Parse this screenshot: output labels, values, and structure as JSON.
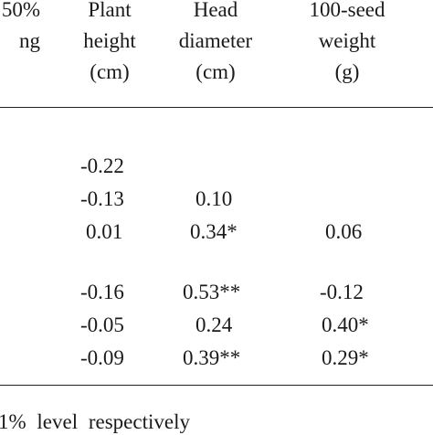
{
  "table": {
    "headers": [
      {
        "lines": [
          "50%",
          "ng"
        ]
      },
      {
        "lines": [
          "Plant",
          "height",
          "(cm)"
        ]
      },
      {
        "lines": [
          "Head",
          "diameter",
          "(cm)"
        ]
      },
      {
        "lines": [
          "100-seed",
          "weight",
          "(g)"
        ]
      }
    ],
    "rows": [
      {
        "height": "-0.22",
        "head": "",
        "seed": ""
      },
      {
        "height": "-0.13",
        "head": "0.10",
        "seed": ""
      },
      {
        "height": "0.01",
        "head": "0.34*",
        "seed": "0.06"
      },
      {
        "height": "-0.16",
        "head": "0.53**",
        "seed": "-0.12"
      },
      {
        "height": "-0.05",
        "head": "0.24",
        "seed": "0.40*"
      },
      {
        "height": "-0.09",
        "head": "0.39**",
        "seed": "0.29*"
      }
    ]
  },
  "footnote": "1% level respectively"
}
